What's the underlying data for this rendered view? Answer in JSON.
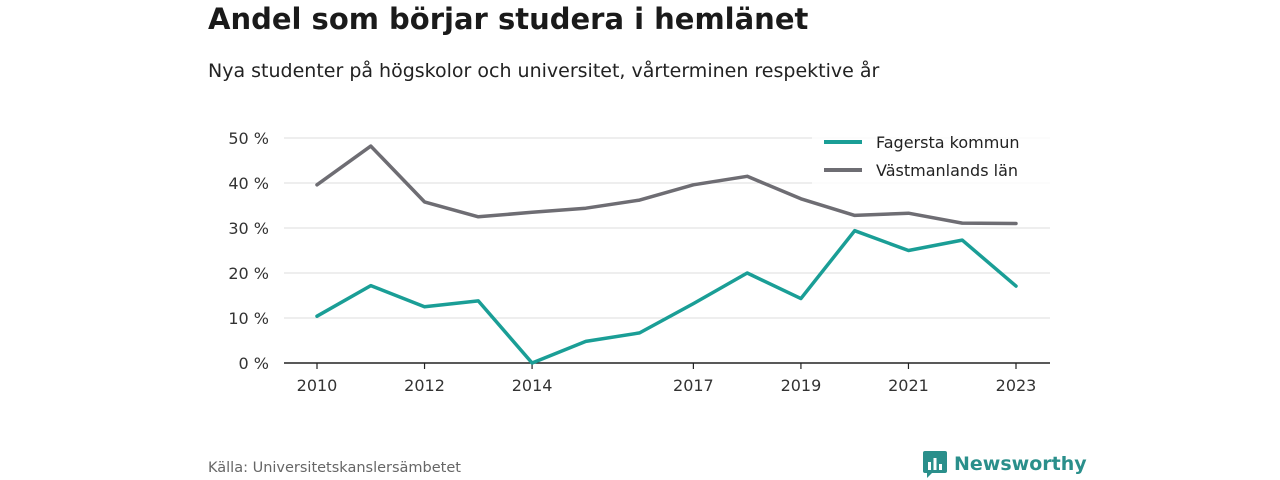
{
  "header": {
    "title": "Andel som börjar studera i hemlänet",
    "subtitle": "Nya studenter på högskolor och universitet, vårterminen respektive år"
  },
  "footer": {
    "source": "Källa: Universitetskanslersämbetet",
    "brand": "Newsworthy"
  },
  "chart_data": {
    "type": "line",
    "x": [
      2010,
      2011,
      2012,
      2013,
      2014,
      2015,
      2016,
      2017,
      2018,
      2019,
      2020,
      2021,
      2022,
      2023
    ],
    "x_ticks": [
      "2010",
      "2012",
      "2014",
      "2017",
      "2019",
      "2021",
      "2023"
    ],
    "x_tick_values": [
      2010,
      2012,
      2014,
      2017,
      2019,
      2021,
      2023
    ],
    "y_ticks": [
      "0 %",
      "10 %",
      "20 %",
      "30 %",
      "40 %",
      "50 %"
    ],
    "y_tick_values": [
      0,
      10,
      20,
      30,
      40,
      50
    ],
    "ylim": [
      0,
      50
    ],
    "grid": true,
    "legend_position": "top-right",
    "series": [
      {
        "name": "Fagersta kommun",
        "color": "#1a9e96",
        "values": [
          10.4,
          17.2,
          12.5,
          13.8,
          0.0,
          4.8,
          6.7,
          13.2,
          20.0,
          14.3,
          29.4,
          25.0,
          27.3,
          17.1
        ]
      },
      {
        "name": "Västmanlands län",
        "color": "#6e6d73",
        "values": [
          39.6,
          48.2,
          35.8,
          32.5,
          33.5,
          34.4,
          36.2,
          39.6,
          41.5,
          36.5,
          32.8,
          33.3,
          31.1,
          31.0
        ]
      }
    ]
  }
}
